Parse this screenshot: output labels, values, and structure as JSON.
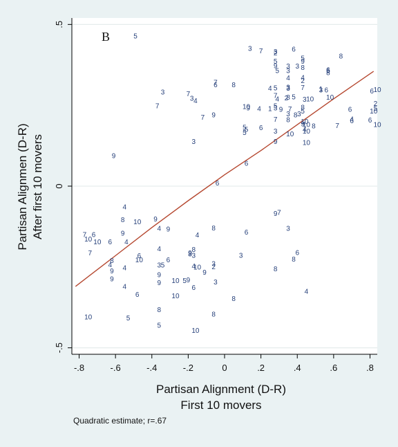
{
  "chart_data": {
    "type": "scatter",
    "panel_label": "B",
    "xlabel": [
      "Partisan Alignment (D-R)",
      "First 10 movers"
    ],
    "ylabel": [
      "Partisan Alignmen (D-R)",
      "After first 10 movers"
    ],
    "note": "Quadratic estimate; r=.67",
    "xlim": [
      -0.84,
      0.84
    ],
    "ylim": [
      -0.52,
      0.52
    ],
    "xticks": [
      -0.8,
      -0.6,
      -0.4,
      -0.2,
      0,
      0.2,
      0.4,
      0.6,
      0.8
    ],
    "xtick_labels": [
      "-.8",
      "-.6",
      "-.4",
      "-.2",
      "0",
      ".2",
      ".4",
      ".6",
      ".8"
    ],
    "yticks": [
      -0.5,
      0,
      0.5
    ],
    "ytick_labels": [
      "-.5",
      "0",
      ".5"
    ],
    "grid": "horizontal",
    "colors": {
      "background": "#eaf2f3",
      "plot": "#ffffff",
      "markers": "#26407a",
      "fit": "#b5472f"
    },
    "markers": "row labels",
    "fit": {
      "type": "quadratic",
      "x": [
        -0.82,
        -0.6,
        -0.4,
        -0.2,
        0,
        0.2,
        0.4,
        0.6,
        0.82
      ],
      "y": [
        -0.31,
        -0.215,
        -0.128,
        -0.045,
        0.035,
        0.11,
        0.19,
        0.27,
        0.355
      ]
    },
    "points": [
      {
        "x": -0.49,
        "y": 0.464,
        "label": "5"
      },
      {
        "x": 0.14,
        "y": 0.426,
        "label": "3"
      },
      {
        "x": 0.2,
        "y": 0.418,
        "label": "7"
      },
      {
        "x": 0.28,
        "y": 0.416,
        "label": "3"
      },
      {
        "x": 0.28,
        "y": 0.412,
        "label": "2"
      },
      {
        "x": 0.38,
        "y": 0.424,
        "label": "6"
      },
      {
        "x": 0.43,
        "y": 0.396,
        "label": "5"
      },
      {
        "x": 0.43,
        "y": 0.386,
        "label": "9"
      },
      {
        "x": 0.64,
        "y": 0.402,
        "label": "8"
      },
      {
        "x": 0.28,
        "y": 0.386,
        "label": "5"
      },
      {
        "x": 0.28,
        "y": 0.372,
        "label": "9"
      },
      {
        "x": 0.29,
        "y": 0.357,
        "label": "5"
      },
      {
        "x": 0.35,
        "y": 0.371,
        "label": "3"
      },
      {
        "x": 0.35,
        "y": 0.357,
        "label": "3"
      },
      {
        "x": 0.4,
        "y": 0.371,
        "label": "3"
      },
      {
        "x": 0.43,
        "y": 0.367,
        "label": "8"
      },
      {
        "x": 0.57,
        "y": 0.357,
        "label": "5"
      },
      {
        "x": 0.57,
        "y": 0.351,
        "label": "8"
      },
      {
        "x": 0.57,
        "y": 0.359,
        "label": "6"
      },
      {
        "x": 0.35,
        "y": 0.335,
        "label": "4"
      },
      {
        "x": 0.43,
        "y": 0.336,
        "label": "4"
      },
      {
        "x": 0.43,
        "y": 0.326,
        "label": "2"
      },
      {
        "x": -0.34,
        "y": 0.291,
        "label": "3"
      },
      {
        "x": -0.05,
        "y": 0.321,
        "label": "7"
      },
      {
        "x": -0.05,
        "y": 0.314,
        "label": "6"
      },
      {
        "x": 0.05,
        "y": 0.314,
        "label": "8"
      },
      {
        "x": 0.25,
        "y": 0.303,
        "label": "4"
      },
      {
        "x": 0.28,
        "y": 0.304,
        "label": "5"
      },
      {
        "x": 0.35,
        "y": 0.306,
        "label": "3"
      },
      {
        "x": 0.35,
        "y": 0.303,
        "label": "3"
      },
      {
        "x": 0.43,
        "y": 0.305,
        "label": "7"
      },
      {
        "x": 0.53,
        "y": 0.297,
        "label": "3"
      },
      {
        "x": 0.53,
        "y": 0.301,
        "label": "1"
      },
      {
        "x": 0.56,
        "y": 0.297,
        "label": "6"
      },
      {
        "x": 0.81,
        "y": 0.294,
        "label": "6"
      },
      {
        "x": 0.84,
        "y": 0.299,
        "label": "10"
      },
      {
        "x": -0.2,
        "y": 0.286,
        "label": "7"
      },
      {
        "x": -0.18,
        "y": 0.272,
        "label": "3"
      },
      {
        "x": -0.16,
        "y": 0.264,
        "label": "4"
      },
      {
        "x": 0.28,
        "y": 0.28,
        "label": "7"
      },
      {
        "x": 0.29,
        "y": 0.27,
        "label": "4"
      },
      {
        "x": 0.34,
        "y": 0.273,
        "label": "2"
      },
      {
        "x": 0.35,
        "y": 0.275,
        "label": "8"
      },
      {
        "x": 0.38,
        "y": 0.276,
        "label": "5"
      },
      {
        "x": 0.44,
        "y": 0.269,
        "label": "3"
      },
      {
        "x": 0.47,
        "y": 0.27,
        "label": "10"
      },
      {
        "x": 0.58,
        "y": 0.275,
        "label": "10"
      },
      {
        "x": 0.83,
        "y": 0.256,
        "label": "2"
      },
      {
        "x": 0.83,
        "y": 0.241,
        "label": "5"
      },
      {
        "x": -0.37,
        "y": 0.248,
        "label": "7"
      },
      {
        "x": 0.12,
        "y": 0.246,
        "label": "10"
      },
      {
        "x": 0.13,
        "y": 0.242,
        "label": "9"
      },
      {
        "x": 0.19,
        "y": 0.24,
        "label": "4"
      },
      {
        "x": 0.25,
        "y": 0.24,
        "label": "1"
      },
      {
        "x": 0.28,
        "y": 0.248,
        "label": "5"
      },
      {
        "x": 0.28,
        "y": 0.242,
        "label": "3"
      },
      {
        "x": 0.31,
        "y": 0.238,
        "label": "9"
      },
      {
        "x": 0.36,
        "y": 0.239,
        "label": "7"
      },
      {
        "x": 0.43,
        "y": 0.244,
        "label": "8"
      },
      {
        "x": 0.43,
        "y": 0.232,
        "label": "5"
      },
      {
        "x": 0.69,
        "y": 0.238,
        "label": "6"
      },
      {
        "x": 0.82,
        "y": 0.232,
        "label": "10"
      },
      {
        "x": -0.06,
        "y": 0.22,
        "label": "9"
      },
      {
        "x": -0.12,
        "y": 0.213,
        "label": "7"
      },
      {
        "x": 0.35,
        "y": 0.224,
        "label": "3"
      },
      {
        "x": 0.39,
        "y": 0.22,
        "label": "8"
      },
      {
        "x": 0.41,
        "y": 0.224,
        "label": "3"
      },
      {
        "x": 0.28,
        "y": 0.206,
        "label": "7"
      },
      {
        "x": 0.35,
        "y": 0.205,
        "label": "8"
      },
      {
        "x": 0.44,
        "y": 0.2,
        "label": "10"
      },
      {
        "x": 0.7,
        "y": 0.208,
        "label": "4"
      },
      {
        "x": 0.7,
        "y": 0.202,
        "label": "6"
      },
      {
        "x": 0.8,
        "y": 0.204,
        "label": "6"
      },
      {
        "x": 0.43,
        "y": 0.193,
        "label": "9"
      },
      {
        "x": 0.45,
        "y": 0.19,
        "label": "10"
      },
      {
        "x": 0.49,
        "y": 0.186,
        "label": "8"
      },
      {
        "x": 0.62,
        "y": 0.187,
        "label": "7"
      },
      {
        "x": 0.84,
        "y": 0.19,
        "label": "10"
      },
      {
        "x": 0.11,
        "y": 0.182,
        "label": "5"
      },
      {
        "x": 0.12,
        "y": 0.176,
        "label": "5"
      },
      {
        "x": 0.2,
        "y": 0.181,
        "label": "6"
      },
      {
        "x": 0.28,
        "y": 0.17,
        "label": "3"
      },
      {
        "x": 0.44,
        "y": 0.176,
        "label": "4"
      },
      {
        "x": 0.45,
        "y": 0.17,
        "label": "10"
      },
      {
        "x": 0.11,
        "y": 0.166,
        "label": "5"
      },
      {
        "x": 0.36,
        "y": 0.162,
        "label": "10"
      },
      {
        "x": -0.61,
        "y": 0.094,
        "label": "9"
      },
      {
        "x": -0.17,
        "y": 0.138,
        "label": "3"
      },
      {
        "x": 0.28,
        "y": 0.138,
        "label": "9"
      },
      {
        "x": 0.45,
        "y": 0.135,
        "label": "10"
      },
      {
        "x": 0.12,
        "y": 0.071,
        "label": "6"
      },
      {
        "x": -0.04,
        "y": 0.01,
        "label": "6"
      },
      {
        "x": -0.55,
        "y": -0.064,
        "label": "4"
      },
      {
        "x": 0.3,
        "y": -0.081,
        "label": "7"
      },
      {
        "x": 0.28,
        "y": -0.085,
        "label": "9"
      },
      {
        "x": -0.56,
        "y": -0.104,
        "label": "8"
      },
      {
        "x": -0.38,
        "y": -0.102,
        "label": "9"
      },
      {
        "x": -0.48,
        "y": -0.11,
        "label": "10"
      },
      {
        "x": -0.36,
        "y": -0.13,
        "label": "4"
      },
      {
        "x": -0.31,
        "y": -0.133,
        "label": "9"
      },
      {
        "x": -0.06,
        "y": -0.129,
        "label": "8"
      },
      {
        "x": 0.35,
        "y": -0.131,
        "label": "3"
      },
      {
        "x": -0.56,
        "y": -0.146,
        "label": "9"
      },
      {
        "x": 0.12,
        "y": -0.142,
        "label": "6"
      },
      {
        "x": -0.15,
        "y": -0.151,
        "label": "4"
      },
      {
        "x": -0.77,
        "y": -0.15,
        "label": "7"
      },
      {
        "x": -0.72,
        "y": -0.15,
        "label": "6"
      },
      {
        "x": -0.75,
        "y": -0.164,
        "label": "10"
      },
      {
        "x": -0.7,
        "y": -0.172,
        "label": "10"
      },
      {
        "x": -0.63,
        "y": -0.172,
        "label": "6"
      },
      {
        "x": -0.54,
        "y": -0.172,
        "label": "4"
      },
      {
        "x": -0.74,
        "y": -0.206,
        "label": "7"
      },
      {
        "x": -0.36,
        "y": -0.194,
        "label": "4"
      },
      {
        "x": -0.17,
        "y": -0.196,
        "label": "8"
      },
      {
        "x": -0.19,
        "y": -0.21,
        "label": "8"
      },
      {
        "x": -0.19,
        "y": -0.206,
        "label": "9"
      },
      {
        "x": -0.17,
        "y": -0.214,
        "label": "3"
      },
      {
        "x": -0.47,
        "y": -0.215,
        "label": "6"
      },
      {
        "x": -0.31,
        "y": -0.228,
        "label": "6"
      },
      {
        "x": 0.4,
        "y": -0.205,
        "label": "6"
      },
      {
        "x": 0.09,
        "y": -0.214,
        "label": "3"
      },
      {
        "x": -0.62,
        "y": -0.23,
        "label": "8"
      },
      {
        "x": -0.47,
        "y": -0.228,
        "label": "10"
      },
      {
        "x": 0.38,
        "y": -0.226,
        "label": "8"
      },
      {
        "x": -0.63,
        "y": -0.243,
        "label": "4"
      },
      {
        "x": -0.55,
        "y": -0.252,
        "label": "4"
      },
      {
        "x": -0.36,
        "y": -0.244,
        "label": "3"
      },
      {
        "x": -0.34,
        "y": -0.244,
        "label": "5"
      },
      {
        "x": -0.17,
        "y": -0.247,
        "label": "4"
      },
      {
        "x": -0.15,
        "y": -0.25,
        "label": "10"
      },
      {
        "x": -0.06,
        "y": -0.24,
        "label": "3"
      },
      {
        "x": -0.06,
        "y": -0.249,
        "label": "2"
      },
      {
        "x": -0.62,
        "y": -0.262,
        "label": "9"
      },
      {
        "x": -0.11,
        "y": -0.266,
        "label": "9"
      },
      {
        "x": 0.28,
        "y": -0.256,
        "label": "8"
      },
      {
        "x": -0.36,
        "y": -0.274,
        "label": "9"
      },
      {
        "x": -0.62,
        "y": -0.287,
        "label": "9"
      },
      {
        "x": -0.36,
        "y": -0.298,
        "label": "9"
      },
      {
        "x": -0.27,
        "y": -0.292,
        "label": "10"
      },
      {
        "x": -0.22,
        "y": -0.292,
        "label": "5"
      },
      {
        "x": -0.2,
        "y": -0.29,
        "label": "9"
      },
      {
        "x": -0.05,
        "y": -0.296,
        "label": "3"
      },
      {
        "x": -0.55,
        "y": -0.31,
        "label": "4"
      },
      {
        "x": -0.17,
        "y": -0.313,
        "label": "6"
      },
      {
        "x": -0.48,
        "y": -0.335,
        "label": "6"
      },
      {
        "x": -0.27,
        "y": -0.339,
        "label": "10"
      },
      {
        "x": 0.45,
        "y": -0.325,
        "label": "4"
      },
      {
        "x": 0.05,
        "y": -0.348,
        "label": "8"
      },
      {
        "x": -0.36,
        "y": -0.382,
        "label": "8"
      },
      {
        "x": -0.06,
        "y": -0.396,
        "label": "8"
      },
      {
        "x": -0.75,
        "y": -0.404,
        "label": "10"
      },
      {
        "x": -0.53,
        "y": -0.408,
        "label": "5"
      },
      {
        "x": -0.36,
        "y": -0.43,
        "label": "5"
      },
      {
        "x": -0.16,
        "y": -0.446,
        "label": "10"
      }
    ]
  }
}
